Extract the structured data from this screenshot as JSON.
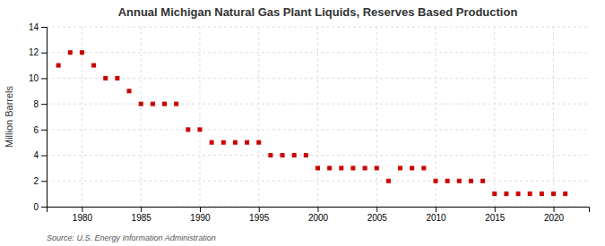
{
  "chart_data": {
    "type": "scatter",
    "title": "Annual Michigan Natural Gas Plant Liquids, Reserves Based Production",
    "ylabel": "Million Barrels",
    "annotations": [
      "Source: U.S. Energy Information Administration"
    ],
    "x": [
      1978,
      1979,
      1980,
      1981,
      1982,
      1983,
      1984,
      1985,
      1986,
      1987,
      1988,
      1989,
      1990,
      1991,
      1992,
      1993,
      1994,
      1995,
      1996,
      1997,
      1998,
      1999,
      2000,
      2001,
      2002,
      2003,
      2004,
      2005,
      2006,
      2007,
      2008,
      2009,
      2010,
      2011,
      2012,
      2013,
      2014,
      2015,
      2016,
      2017,
      2018,
      2019,
      2020,
      2021
    ],
    "values": [
      11,
      12,
      12,
      11,
      10,
      10,
      9,
      8,
      8,
      8,
      8,
      6,
      6,
      5,
      5,
      5,
      5,
      5,
      4,
      4,
      4,
      4,
      3,
      3,
      3,
      3,
      3,
      3,
      2,
      3,
      3,
      3,
      2,
      2,
      2,
      2,
      2,
      1,
      1,
      1,
      1,
      1,
      1,
      1
    ],
    "color": "#cc0000",
    "marker": "square",
    "xlim": [
      1977,
      2023
    ],
    "ylim": [
      0,
      14
    ],
    "xticks": [
      1980,
      1985,
      1990,
      1995,
      2000,
      2005,
      2010,
      2015,
      2020
    ],
    "yticks": [
      0,
      2,
      4,
      6,
      8,
      10,
      12,
      14
    ],
    "grid": true
  }
}
